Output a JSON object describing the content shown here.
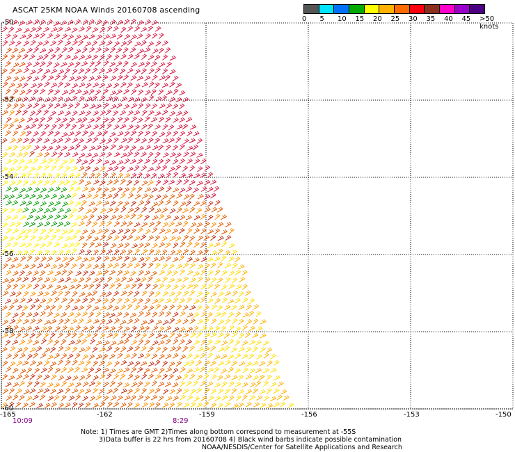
{
  "title": "ASCAT 25KM NOAA Winds 20160708 ascending",
  "legend": {
    "colors": [
      "#555555",
      "#00e5ff",
      "#0070ff",
      "#00aa00",
      "#ffff00",
      "#ffb000",
      "#ff6a00",
      "#ff0010",
      "#8b2e1e",
      "#ff00cc",
      "#9900cc",
      "#4b0082"
    ],
    "labels": [
      "0",
      "5",
      "10",
      "15",
      "20",
      "25",
      "30",
      "35",
      "40",
      "45",
      ">50 knots"
    ]
  },
  "map": {
    "lat_labels": [
      "-50",
      "-52",
      "-54",
      "-56",
      "-58",
      "-60"
    ],
    "lon_labels": [
      "-165",
      "-162",
      "-159",
      "-156",
      "-153",
      "-150"
    ],
    "time_labels": [
      "10:09",
      "8:29"
    ],
    "lat_range": [
      -60,
      -50
    ],
    "lon_range": [
      -165,
      -150
    ],
    "gridlines": "dotted",
    "barb_regions": [
      {
        "region": "north",
        "speed_knots": "35-45",
        "color": "#cc0033"
      },
      {
        "region": "central-west",
        "speed_knots": "20-25",
        "color": "#ffee00"
      },
      {
        "region": "small patch near -163.5,-55",
        "speed_knots": "15-20",
        "color": "#009900"
      },
      {
        "region": "south",
        "speed_knots": "25-35",
        "color": "#e06000"
      },
      {
        "region": "south-east edge",
        "speed_knots": "20-25",
        "color": "#ffdd00"
      }
    ]
  },
  "notes": {
    "line1": "Note: 1) Times are GMT 2)Times along bottom correspond to measurement at -55S",
    "line2": "3)Data buffer is 22 hrs from 20160708 4) Black wind barbs indicate possible contamination",
    "line3": "NOAA/NESDIS/Center for Satellite Applications and Research"
  }
}
